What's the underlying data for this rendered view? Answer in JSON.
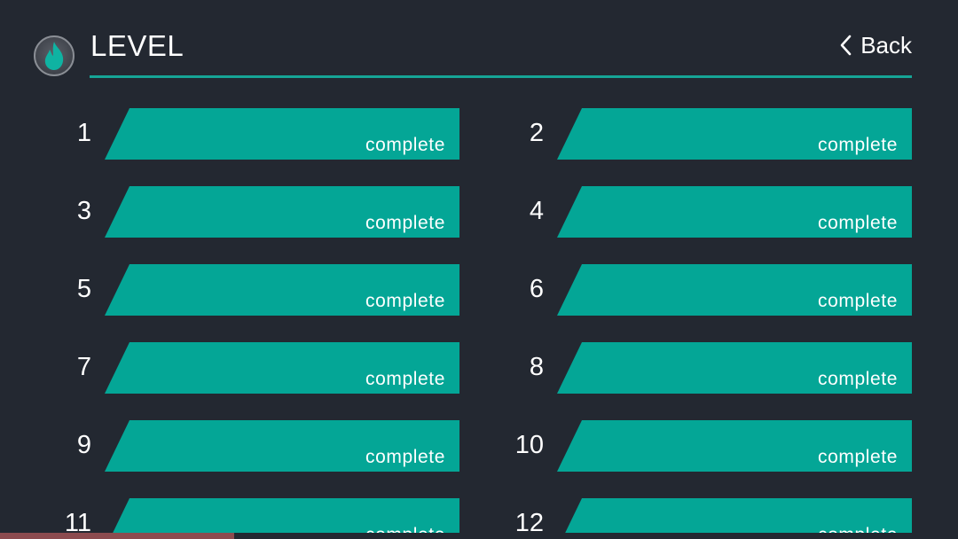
{
  "header": {
    "title": "LEVEL",
    "back_label": "Back"
  },
  "colors": {
    "background": "#232831",
    "accent": "#04a696",
    "rule": "#16a596",
    "text": "#ffffff"
  },
  "icons": {
    "logo": "flame-icon",
    "back": "chevron-left-icon"
  },
  "levels": [
    {
      "number": "1",
      "status": "complete"
    },
    {
      "number": "2",
      "status": "complete"
    },
    {
      "number": "3",
      "status": "complete"
    },
    {
      "number": "4",
      "status": "complete"
    },
    {
      "number": "5",
      "status": "complete"
    },
    {
      "number": "6",
      "status": "complete"
    },
    {
      "number": "7",
      "status": "complete"
    },
    {
      "number": "8",
      "status": "complete"
    },
    {
      "number": "9",
      "status": "complete"
    },
    {
      "number": "10",
      "status": "complete"
    },
    {
      "number": "11",
      "status": "complete"
    },
    {
      "number": "12",
      "status": "complete"
    }
  ]
}
